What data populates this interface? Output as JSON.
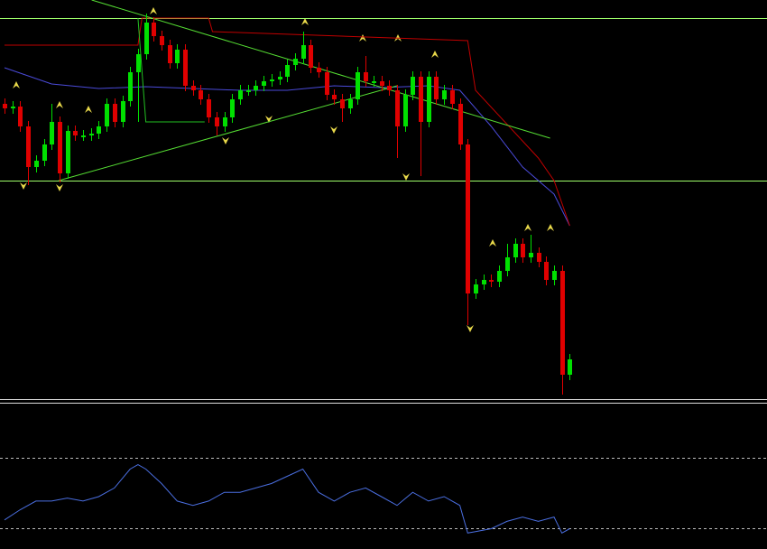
{
  "chart_data": [
    {
      "type": "candlestick",
      "ylim": [
        0,
        440
      ],
      "up_color": "#00e000",
      "down_color": "#e00000",
      "open": [
        325,
        320,
        322,
        300,
        255,
        262,
        280,
        305,
        248,
        295,
        290,
        290,
        292,
        300,
        325,
        305,
        328,
        360,
        380,
        415,
        400,
        390,
        370,
        385,
        345,
        340,
        330,
        310,
        300,
        310,
        330,
        340,
        340,
        345,
        350,
        352,
        355,
        368,
        375,
        390,
        365,
        360,
        335,
        330,
        320,
        330,
        360,
        350,
        350,
        345,
        340,
        300,
        335,
        355,
        305,
        355,
        330,
        340,
        325,
        280,
        115,
        125,
        130,
        128,
        140,
        155,
        170,
        155,
        160,
        150,
        130,
        140,
        25
      ],
      "high": [
        331,
        328,
        328,
        306,
        268,
        286,
        325,
        311,
        301,
        301,
        296,
        298,
        306,
        331,
        331,
        334,
        366,
        386,
        425,
        421,
        406,
        396,
        391,
        391,
        351,
        346,
        336,
        316,
        316,
        336,
        346,
        346,
        351,
        356,
        358,
        361,
        374,
        381,
        405,
        396,
        371,
        366,
        341,
        336,
        336,
        366,
        378,
        356,
        356,
        351,
        346,
        341,
        361,
        361,
        361,
        361,
        346,
        346,
        331,
        286,
        131,
        136,
        136,
        146,
        170,
        176,
        176,
        180,
        166,
        156,
        146,
        146,
        48
      ],
      "low": [
        314,
        314,
        294,
        235,
        249,
        256,
        274,
        238,
        242,
        284,
        284,
        284,
        286,
        294,
        299,
        299,
        322,
        305,
        374,
        394,
        384,
        364,
        364,
        339,
        334,
        324,
        304,
        290,
        294,
        304,
        324,
        334,
        334,
        339,
        344,
        346,
        349,
        362,
        369,
        359,
        354,
        329,
        324,
        305,
        314,
        324,
        344,
        344,
        339,
        334,
        265,
        294,
        329,
        245,
        299,
        324,
        324,
        319,
        274,
        80,
        109,
        119,
        122,
        122,
        134,
        149,
        149,
        149,
        144,
        124,
        124,
        3,
        19
      ],
      "close": [
        320,
        322,
        300,
        255,
        262,
        280,
        305,
        248,
        295,
        290,
        290,
        292,
        300,
        325,
        305,
        328,
        360,
        380,
        415,
        400,
        390,
        370,
        385,
        345,
        340,
        330,
        310,
        300,
        310,
        330,
        340,
        340,
        345,
        350,
        352,
        355,
        368,
        375,
        390,
        365,
        360,
        335,
        330,
        320,
        330,
        360,
        350,
        350,
        345,
        340,
        300,
        335,
        355,
        305,
        355,
        330,
        340,
        325,
        280,
        115,
        125,
        130,
        128,
        140,
        155,
        170,
        155,
        160,
        150,
        130,
        140,
        25,
        42
      ],
      "hlines": [
        420,
        240
      ],
      "hline_color": "#9eff6a",
      "series": [
        {
          "color": "#4a4ad8",
          "x": [
            0,
            6,
            12,
            18,
            24,
            30,
            36,
            42,
            48,
            54,
            58,
            62,
            66,
            70,
            72
          ],
          "values": [
            365,
            347,
            342,
            344,
            342,
            340,
            340,
            345,
            343,
            345,
            340,
            300,
            255,
            225,
            190
          ]
        },
        {
          "color": "#c00000",
          "x": [
            0,
            17,
            17.5,
            26,
            26.5,
            59,
            60,
            68,
            70,
            72
          ],
          "values": [
            390,
            390,
            420,
            420,
            405,
            395,
            340,
            265,
            240,
            190
          ]
        },
        {
          "color": "#22c022",
          "x": [
            17,
            18,
            25.5
          ],
          "values": [
            420,
            305,
            305
          ]
        },
        {
          "color": "#55dd33",
          "x": [
            11.1,
            69.5
          ],
          "values": [
            440,
            287
          ]
        },
        {
          "color": "#55dd33",
          "x": [
            6.9,
            50
          ],
          "values": [
            240,
            345
          ]
        }
      ]
    },
    {
      "type": "line",
      "ylim": [
        0,
        100
      ],
      "hlines": [
        63,
        14
      ],
      "hline_color": "#bbbbbb",
      "color": "#4a6ee0",
      "x": [
        0,
        2,
        4,
        6,
        8,
        10,
        12,
        14,
        16,
        17,
        18,
        20,
        22,
        24,
        26,
        28,
        30,
        32,
        34,
        36,
        38,
        40,
        42,
        44,
        46,
        48,
        50,
        52,
        54,
        56,
        58,
        59,
        60,
        62,
        64,
        66,
        68,
        70,
        71,
        72
      ],
      "values": [
        20,
        27,
        33,
        33,
        35,
        33,
        36,
        42,
        55,
        58,
        55,
        45,
        33,
        30,
        33,
        39,
        39,
        42,
        45,
        50,
        55,
        39,
        33,
        39,
        42,
        36,
        30,
        39,
        33,
        36,
        30,
        11,
        12,
        14,
        19,
        22,
        19,
        22,
        11,
        14
      ]
    }
  ]
}
